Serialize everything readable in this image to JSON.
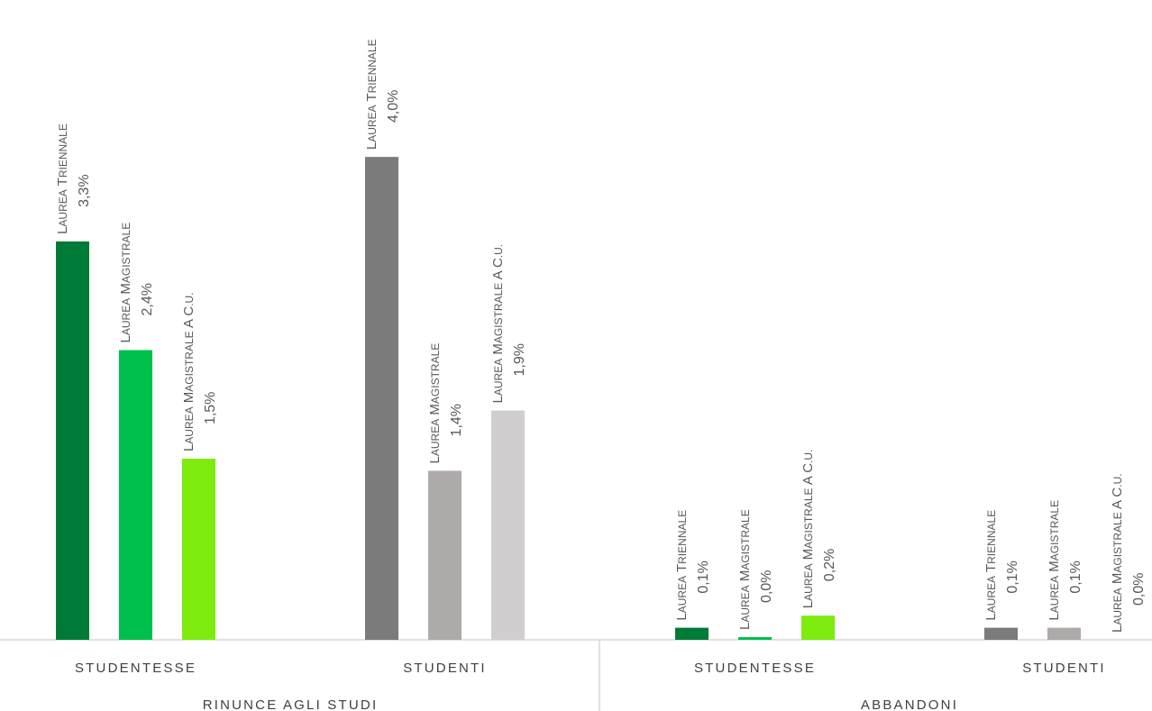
{
  "chart_data": {
    "type": "bar",
    "y_unit": "%",
    "ylim": [
      0,
      5.3
    ],
    "grid": false,
    "legend": "none",
    "sections": [
      {
        "label": "RINUNCE AGLI STUDI",
        "groups": [
          {
            "label": "STUDENTESSE",
            "bars": [
              {
                "category": "Laurea Triennale",
                "value": 3.3,
                "value_label": "3,3%",
                "color": "#007A37"
              },
              {
                "category": "Laurea Magistrale",
                "value": 2.4,
                "value_label": "2,4%",
                "color": "#00C04D"
              },
              {
                "category": "Laurea Magistrale a C.U.",
                "value": 1.5,
                "value_label": "1,5%",
                "color": "#7DEB0E"
              }
            ]
          },
          {
            "label": "STUDENTI",
            "bars": [
              {
                "category": "Laurea Triennale",
                "value": 4.0,
                "value_label": "4,0%",
                "color": "#7B7B7B"
              },
              {
                "category": "Laurea Magistrale",
                "value": 1.4,
                "value_label": "1,4%",
                "color": "#AEAAAA"
              },
              {
                "category": "Laurea Magistrale a C.U.",
                "value": 1.9,
                "value_label": "1,9%",
                "color": "#D0CECE"
              }
            ]
          }
        ]
      },
      {
        "label": "ABBANDONI",
        "groups": [
          {
            "label": "STUDENTESSE",
            "bars": [
              {
                "category": "Laurea Triennale",
                "value": 0.1,
                "value_label": "0,1%",
                "color": "#007A37"
              },
              {
                "category": "Laurea Magistrale",
                "value": 0.0,
                "value_label": "0,0%",
                "color": "#00C04D"
              },
              {
                "category": "Laurea Magistrale a C.U.",
                "value": 0.2,
                "value_label": "0,2%",
                "color": "#7DEB0E"
              }
            ]
          },
          {
            "label": "STUDENTI",
            "bars": [
              {
                "category": "Laurea Triennale",
                "value": 0.1,
                "value_label": "0,1%",
                "color": "#7B7B7B"
              },
              {
                "category": "Laurea Magistrale",
                "value": 0.1,
                "value_label": "0,1%",
                "color": "#AEAAAA"
              },
              {
                "category": "Laurea Magistrale a C.U.",
                "value": 0.0,
                "value_label": "0,0%",
                "color": "#D0CECE"
              }
            ]
          }
        ]
      }
    ]
  }
}
